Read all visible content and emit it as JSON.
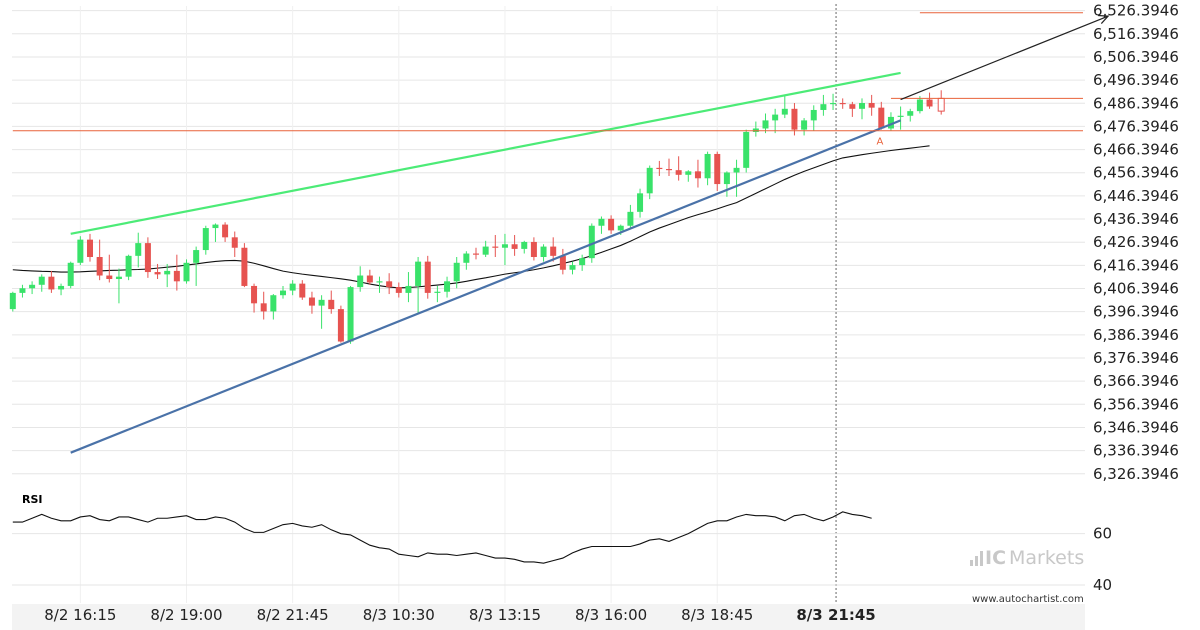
{
  "chart_data": [
    {
      "type": "candlestick",
      "y_ticks": [
        "6,526.3946",
        "6,516.3946",
        "6,506.3946",
        "6,496.3946",
        "6,486.3946",
        "6,476.3946",
        "6,466.3946",
        "6,456.3946",
        "6,446.3946",
        "6,436.3946",
        "6,426.3946",
        "6,416.3946",
        "6,406.3946",
        "6,396.3946",
        "6,386.3946",
        "6,376.3946",
        "6,366.3946",
        "6,356.3946",
        "6,346.3946",
        "6,336.3946",
        "6,326.3946"
      ],
      "ylim": [
        6322.4,
        6528.4
      ],
      "x_ticks": [
        {
          "label": "8/2 16:15",
          "i": 7
        },
        {
          "label": "8/2 19:00",
          "i": 18
        },
        {
          "label": "8/2 21:45",
          "i": 29
        },
        {
          "label": "8/3 10:30",
          "i": 40
        },
        {
          "label": "8/3 13:15",
          "i": 51
        },
        {
          "label": "8/3 16:00",
          "i": 62
        },
        {
          "label": "8/3 18:45",
          "i": 73
        },
        {
          "label": "8/3 21:45",
          "i": 85,
          "current": true
        }
      ],
      "current_time_index": 85,
      "candles": [
        [
          6397.5,
          6405.0,
          6396.5,
          6404.5
        ],
        [
          6404.5,
          6408.0,
          6402.5,
          6406.5
        ],
        [
          6406.5,
          6409.5,
          6404.0,
          6408.0
        ],
        [
          6408.0,
          6412.5,
          6405.0,
          6411.5
        ],
        [
          6411.5,
          6414.0,
          6404.5,
          6406.0
        ],
        [
          6406.0,
          6408.5,
          6403.5,
          6407.5
        ],
        [
          6407.5,
          6418.0,
          6406.5,
          6417.5
        ],
        [
          6417.5,
          6429.0,
          6416.5,
          6427.5
        ],
        [
          6427.5,
          6430.0,
          6418.0,
          6420.0
        ],
        [
          6420.0,
          6427.5,
          6410.0,
          6412.0
        ],
        [
          6412.0,
          6421.0,
          6409.0,
          6410.5
        ],
        [
          6410.5,
          6415.0,
          6400.0,
          6411.5
        ],
        [
          6411.5,
          6421.0,
          6410.0,
          6420.5
        ],
        [
          6420.5,
          6430.5,
          6415.5,
          6426.0
        ],
        [
          6426.0,
          6428.5,
          6411.0,
          6413.5
        ],
        [
          6413.5,
          6417.0,
          6410.5,
          6412.5
        ],
        [
          6412.5,
          6417.0,
          6407.0,
          6414.0
        ],
        [
          6414.0,
          6421.0,
          6405.5,
          6409.5
        ],
        [
          6409.5,
          6419.0,
          6408.5,
          6417.5
        ],
        [
          6417.5,
          6424.5,
          6407.5,
          6423.0
        ],
        [
          6423.0,
          6433.5,
          6421.0,
          6432.5
        ],
        [
          6432.5,
          6434.5,
          6426.5,
          6434.0
        ],
        [
          6434.0,
          6435.0,
          6426.5,
          6428.5
        ],
        [
          6428.5,
          6431.0,
          6420.0,
          6424.0
        ],
        [
          6424.0,
          6426.0,
          6407.0,
          6407.5
        ],
        [
          6407.5,
          6408.5,
          6396.0,
          6400.0
        ],
        [
          6400.0,
          6405.0,
          6393.0,
          6396.5
        ],
        [
          6396.5,
          6404.0,
          6393.0,
          6403.5
        ],
        [
          6403.5,
          6407.5,
          6402.0,
          6405.5
        ],
        [
          6405.5,
          6410.0,
          6403.5,
          6408.5
        ],
        [
          6408.5,
          6410.0,
          6401.5,
          6402.5
        ],
        [
          6402.5,
          6405.0,
          6395.5,
          6399.0
        ],
        [
          6399.0,
          6403.5,
          6389.0,
          6401.5
        ],
        [
          6401.5,
          6405.5,
          6395.5,
          6397.5
        ],
        [
          6397.5,
          6399.0,
          6383.0,
          6383.5
        ],
        [
          6383.5,
          6407.5,
          6382.5,
          6407.0
        ],
        [
          6407.0,
          6416.0,
          6405.0,
          6412.0
        ],
        [
          6412.0,
          6414.5,
          6408.0,
          6409.0
        ],
        [
          6409.0,
          6411.5,
          6404.5,
          6409.5
        ],
        [
          6409.5,
          6413.0,
          6404.0,
          6407.0
        ],
        [
          6407.0,
          6409.0,
          6402.5,
          6404.5
        ],
        [
          6404.5,
          6413.5,
          6400.5,
          6407.5
        ],
        [
          6407.5,
          6420.0,
          6396.0,
          6418.0
        ],
        [
          6418.0,
          6420.5,
          6402.0,
          6404.5
        ],
        [
          6404.5,
          6407.5,
          6400.5,
          6405.0
        ],
        [
          6405.0,
          6411.5,
          6402.5,
          6409.5
        ],
        [
          6409.5,
          6420.0,
          6406.5,
          6417.5
        ],
        [
          6417.5,
          6422.5,
          6414.5,
          6421.5
        ],
        [
          6421.5,
          6424.0,
          6419.0,
          6421.0
        ],
        [
          6421.0,
          6427.0,
          6420.0,
          6424.5
        ],
        [
          6424.5,
          6429.5,
          6420.0,
          6424.0
        ],
        [
          6424.0,
          6430.0,
          6416.5,
          6425.5
        ],
        [
          6425.5,
          6429.5,
          6420.5,
          6423.5
        ],
        [
          6423.5,
          6427.0,
          6421.5,
          6426.5
        ],
        [
          6426.5,
          6428.5,
          6418.5,
          6420.0
        ],
        [
          6420.0,
          6425.5,
          6418.0,
          6424.5
        ],
        [
          6424.5,
          6428.5,
          6418.0,
          6420.5
        ],
        [
          6420.5,
          6423.5,
          6412.5,
          6414.5
        ],
        [
          6414.5,
          6418.0,
          6412.5,
          6416.5
        ],
        [
          6416.5,
          6421.0,
          6414.0,
          6419.5
        ],
        [
          6419.5,
          6434.5,
          6417.5,
          6433.5
        ],
        [
          6433.5,
          6437.5,
          6430.0,
          6436.5
        ],
        [
          6436.5,
          6438.0,
          6430.0,
          6431.5
        ],
        [
          6431.5,
          6434.0,
          6429.5,
          6433.5
        ],
        [
          6433.5,
          6442.5,
          6432.0,
          6439.5
        ],
        [
          6439.5,
          6449.5,
          6437.0,
          6447.5
        ],
        [
          6447.5,
          6459.5,
          6445.0,
          6458.5
        ],
        [
          6458.5,
          6461.5,
          6455.0,
          6458.0
        ],
        [
          6458.0,
          6462.5,
          6455.0,
          6457.5
        ],
        [
          6457.5,
          6463.5,
          6453.0,
          6455.5
        ],
        [
          6455.5,
          6457.5,
          6452.5,
          6457.0
        ],
        [
          6457.0,
          6462.0,
          6450.0,
          6454.0
        ],
        [
          6454.0,
          6465.5,
          6451.0,
          6464.5
        ],
        [
          6464.5,
          6465.5,
          6448.5,
          6451.5
        ],
        [
          6451.5,
          6457.0,
          6446.0,
          6456.5
        ],
        [
          6456.5,
          6462.0,
          6446.0,
          6458.5
        ],
        [
          6458.5,
          6475.0,
          6456.5,
          6474.0
        ],
        [
          6474.0,
          6478.5,
          6472.0,
          6475.5
        ],
        [
          6475.5,
          6482.0,
          6473.5,
          6479.0
        ],
        [
          6479.0,
          6484.0,
          6473.5,
          6481.5
        ],
        [
          6481.5,
          6490.0,
          6480.0,
          6484.0
        ],
        [
          6484.0,
          6486.5,
          6472.5,
          6475.0
        ],
        [
          6475.0,
          6480.0,
          6472.5,
          6479.0
        ],
        [
          6479.0,
          6485.5,
          6474.5,
          6483.5
        ],
        [
          6483.5,
          6490.0,
          6481.0,
          6486.0
        ],
        [
          6486.0,
          6490.5,
          6483.5,
          6486.5
        ],
        [
          6486.5,
          6488.5,
          6484.0,
          6486.0
        ],
        [
          6486.0,
          6487.0,
          6480.5,
          6484.0
        ],
        [
          6484.0,
          6488.5,
          6479.5,
          6486.5
        ],
        [
          6486.5,
          6490.0,
          6481.0,
          6484.5
        ],
        [
          6484.5,
          6487.0,
          6475.0,
          6475.5
        ],
        [
          6475.5,
          6482.5,
          6474.5,
          6480.5
        ],
        [
          6480.5,
          6485.0,
          6475.0,
          6481.0
        ],
        [
          6481.0,
          6484.0,
          6478.5,
          6483.0
        ],
        [
          6483.0,
          6489.5,
          6482.0,
          6488.0
        ],
        [
          6488.0,
          6491.0,
          6484.0,
          6485.0
        ]
      ],
      "ma": [
        6414.5,
        6414.2,
        6414.0,
        6413.8,
        6413.7,
        6413.5,
        6413.5,
        6413.6,
        6413.8,
        6414.0,
        6414.2,
        6414.3,
        6414.5,
        6414.6,
        6414.8,
        6415.2,
        6415.6,
        6416.0,
        6416.5,
        6417.0,
        6417.6,
        6418.1,
        6418.4,
        6418.5,
        6418.2,
        6417.3,
        6416.2,
        6415.0,
        6413.9,
        6413.2,
        6412.6,
        6412.1,
        6411.6,
        6411.1,
        6410.6,
        6410.0,
        6409.2,
        6408.3,
        6407.6,
        6407.0,
        6406.7,
        6406.8,
        6407.1,
        6407.5,
        6407.9,
        6408.3,
        6408.8,
        6409.5,
        6410.3,
        6411.0,
        6411.8,
        6412.6,
        6413.2,
        6413.8,
        6414.5,
        6415.3,
        6416.2,
        6417.2,
        6418.2,
        6419.3,
        6420.6,
        6422.0,
        6423.5,
        6425.0,
        6426.8,
        6428.8,
        6430.8,
        6432.5,
        6434.0,
        6435.5,
        6437.0,
        6438.3,
        6439.5,
        6440.8,
        6442.2,
        6443.5,
        6445.5,
        6447.5,
        6449.5,
        6451.5,
        6453.5,
        6455.3,
        6457.0,
        6458.5,
        6460.0,
        6461.5,
        6462.8,
        6463.5,
        6464.2,
        6464.8,
        6465.4,
        6466.0,
        6466.5,
        6467.0,
        6467.5,
        6468.0
      ],
      "trendlines": [
        {
          "name": "resistance",
          "color": "#4ceb77",
          "from": {
            "i": 6,
            "y": 6430.0
          },
          "to": {
            "i": 92,
            "y": 6499.5
          }
        },
        {
          "name": "support",
          "color": "#4a72a8",
          "from": {
            "i": 6,
            "y": 6335.5
          },
          "to": {
            "i": 92,
            "y": 6479.0
          }
        }
      ],
      "projection_arrow": {
        "from": {
          "i": 92,
          "y": 6488.0
        },
        "to": {
          "i": 113.5,
          "y": 6524.0
        },
        "color": "#222222"
      },
      "levels": [
        {
          "y": 6525.5,
          "from_i": 94,
          "color": "#e8623a"
        },
        {
          "y": 6488.5,
          "from_i": 91,
          "color": "#e8623a"
        },
        {
          "y": 6474.5,
          "from_i": 0,
          "color": "#e8623a"
        }
      ],
      "annotation": {
        "text": "A",
        "i": 89.5,
        "y": 6472.0,
        "color": "#e8623a"
      },
      "colors": {
        "up": "#39e26a",
        "down": "#e65350",
        "grid": "#e6e6e6",
        "axis_panel": "#f3f3f3",
        "ma": "#111111"
      }
    },
    {
      "type": "line",
      "name": "RSI",
      "y_ticks": [
        60,
        40
      ],
      "ylim": [
        33,
        77
      ],
      "values": [
        64.5,
        64.5,
        66.0,
        67.5,
        66.0,
        65.0,
        65.0,
        66.5,
        67.0,
        65.5,
        65.0,
        66.5,
        66.5,
        65.5,
        64.5,
        66.0,
        66.0,
        66.5,
        67.0,
        65.5,
        65.5,
        66.5,
        66.0,
        64.5,
        62.0,
        60.5,
        60.5,
        62.0,
        63.5,
        64.0,
        63.0,
        62.5,
        63.5,
        61.5,
        60.0,
        59.5,
        57.5,
        55.5,
        54.5,
        54.0,
        52.0,
        51.5,
        51.0,
        52.5,
        52.0,
        52.0,
        51.5,
        52.0,
        52.5,
        51.5,
        50.5,
        50.5,
        50.0,
        49.0,
        49.0,
        48.5,
        49.5,
        50.5,
        52.5,
        54.0,
        55.0,
        55.0,
        55.0,
        55.0,
        55.0,
        56.0,
        57.5,
        58.0,
        57.0,
        58.5,
        60.0,
        62.0,
        64.0,
        65.0,
        65.0,
        66.5,
        67.5,
        67.0,
        67.0,
        66.5,
        65.0,
        67.0,
        67.5,
        66.0,
        65.0,
        66.5,
        68.5,
        67.5,
        67.0,
        66.0
      ]
    }
  ],
  "brand": {
    "logo_ic": "IC",
    "logo_markets": "Markets",
    "url": "www.autochartist.com"
  }
}
